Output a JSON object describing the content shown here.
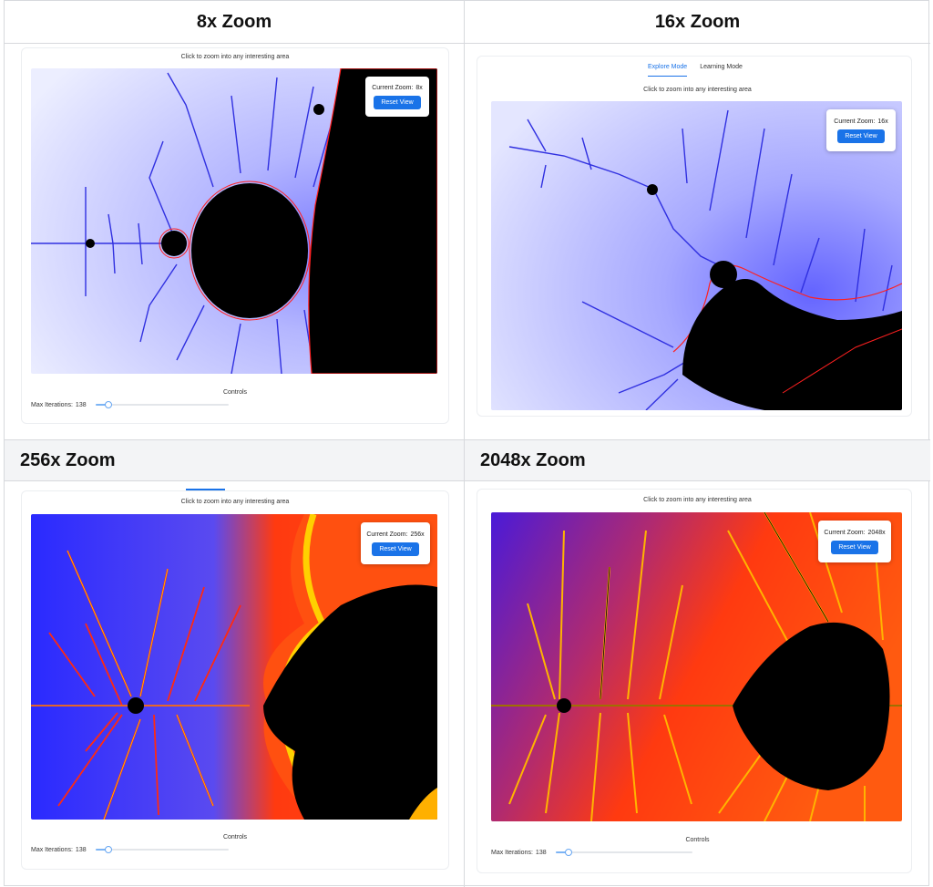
{
  "panels": [
    {
      "header": "8x Zoom",
      "hint": "Click to zoom into any interesting area",
      "zoom_label": "Current Zoom:",
      "zoom_value": "8x",
      "reset_label": "Reset View",
      "controls_title": "Controls",
      "iterations_label": "Max Iterations:",
      "iterations_value": "138"
    },
    {
      "header": "16x Zoom",
      "tabs": [
        "Explore Mode",
        "Learning Mode"
      ],
      "hint": "Click to zoom into any interesting area",
      "zoom_label": "Current Zoom:",
      "zoom_value": "16x",
      "reset_label": "Reset View"
    },
    {
      "header": "256x Zoom",
      "hint": "Click to zoom into any interesting area",
      "zoom_label": "Current Zoom:",
      "zoom_value": "256x",
      "reset_label": "Reset View",
      "controls_title": "Controls",
      "iterations_label": "Max Iterations:",
      "iterations_value": "138"
    },
    {
      "header": "2048x Zoom",
      "hint": "Click to zoom into any interesting area",
      "zoom_label": "Current Zoom:",
      "zoom_value": "2048x",
      "reset_label": "Reset View",
      "controls_title": "Controls",
      "iterations_label": "Max Iterations:",
      "iterations_value": "138"
    }
  ],
  "slider": {
    "value": 138,
    "fraction": 0.1
  },
  "colors": {
    "accent": "#1a73e8",
    "fractal_interior": "#000000",
    "fractal_outer_light": "#eceeff",
    "fractal_blue": "#2222ff",
    "fractal_red": "#ff2200",
    "fractal_yellow": "#ffd400"
  },
  "icons": [
    "slider-thumb-icon"
  ]
}
